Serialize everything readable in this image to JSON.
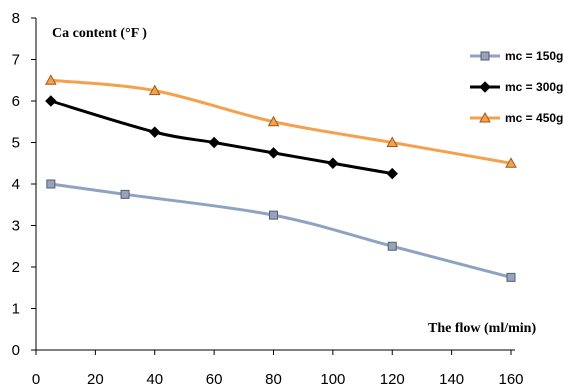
{
  "chart_data": {
    "type": "line",
    "ylabel": "Ca  content (°F )",
    "xlabel": "The flow (ml/min)",
    "xlim": [
      0,
      160
    ],
    "ylim": [
      0,
      8
    ],
    "xticks": [
      "0",
      "20",
      "40",
      "60",
      "80",
      "100",
      "120",
      "140",
      "160"
    ],
    "yticks": [
      "0",
      "1",
      "2",
      "3",
      "4",
      "5",
      "6",
      "7",
      "8"
    ],
    "grid": false,
    "legend_position": "right",
    "series": [
      {
        "name": "mc = 150g",
        "color": "#8ea3c4",
        "marker": "square",
        "marker_fill": "#96a3bb",
        "marker_stroke": "#555f6e",
        "x": [
          5,
          30,
          80,
          120,
          160
        ],
        "y": [
          4.0,
          3.75,
          3.25,
          2.5,
          1.75
        ]
      },
      {
        "name": "mc = 300g",
        "color": "#000000",
        "marker": "diamond",
        "marker_fill": "#000000",
        "marker_stroke": "#000000",
        "x": [
          5,
          40,
          60,
          80,
          100,
          120
        ],
        "y": [
          6.0,
          5.25,
          5.0,
          4.75,
          4.5,
          4.25
        ]
      },
      {
        "name": "mc = 450g",
        "color": "#f5a04c",
        "marker": "triangle",
        "marker_fill": "#f5a04c",
        "marker_stroke": "#9a5a1c",
        "x": [
          5,
          40,
          80,
          120,
          160
        ],
        "y": [
          6.5,
          6.25,
          5.5,
          5.0,
          4.5
        ]
      }
    ]
  }
}
